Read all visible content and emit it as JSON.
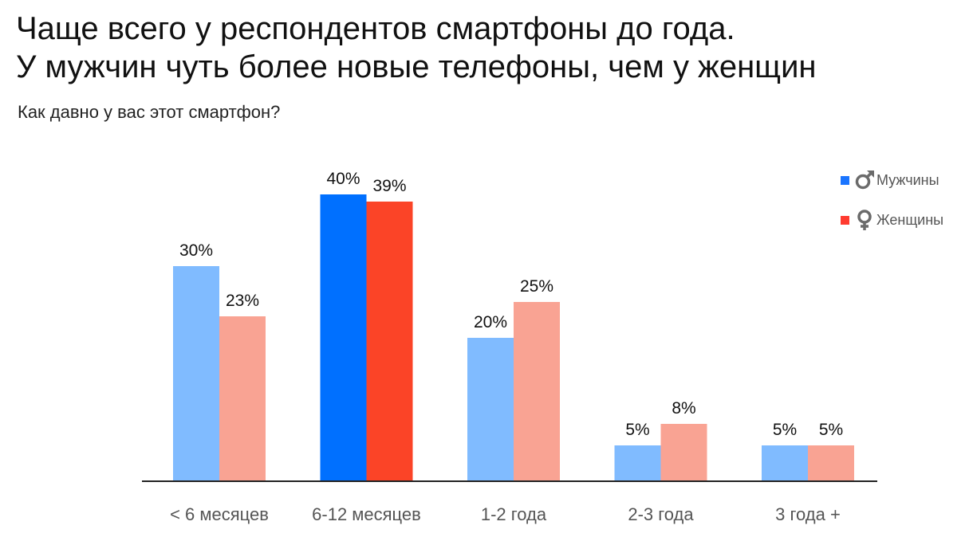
{
  "title_line1": "Чаще всего у респондентов смартфоны до года.",
  "title_line2": "У мужчин чуть более новые телефоны, чем у женщин",
  "subtitle": "Как давно у вас этот смартфон?",
  "legend": [
    {
      "label": "Мужчины",
      "icon": "male-symbol-icon",
      "color": "#1a75ff"
    },
    {
      "label": "Женщины",
      "icon": "female-symbol-icon",
      "color": "#ff3b30"
    }
  ],
  "chart_data": {
    "type": "bar",
    "categories": [
      "< 6 месяцев",
      "6-12 месяцев",
      "1-2 года",
      "2-3 года",
      "3 года +"
    ],
    "series": [
      {
        "name": "Мужчины",
        "values": [
          30,
          40,
          20,
          5,
          5
        ],
        "labels": [
          "30%",
          "40%",
          "20%",
          "5%",
          "5%"
        ]
      },
      {
        "name": "Женщины",
        "values": [
          23,
          39,
          25,
          8,
          5
        ],
        "labels": [
          "23%",
          "39%",
          "25%",
          "8%",
          "5%"
        ]
      }
    ],
    "highlight_category": "6-12 месяцев",
    "colors": {
      "male": "#80bbff",
      "female": "#f9a393",
      "male_highlight": "#0070ff",
      "female_highlight": "#fb4427",
      "axis": "#222222"
    },
    "ylim": [
      0,
      40
    ],
    "legend_position": "top-right",
    "grid": false
  }
}
